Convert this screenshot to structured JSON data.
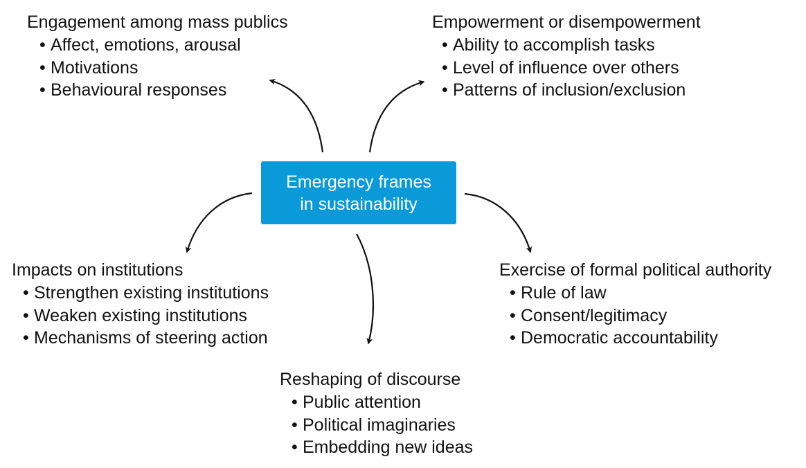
{
  "center": {
    "line1": "Emergency frames",
    "line2": "in sustainability",
    "color": "#0a9ad9"
  },
  "topics": {
    "engagement": {
      "title": "Engagement among mass publics",
      "items": [
        "Affect, emotions, arousal",
        "Motivations",
        "Behavioural responses"
      ]
    },
    "empowerment": {
      "title": "Empowerment or disempowerment",
      "items": [
        "Ability to accomplish tasks",
        "Level of influence over others",
        "Patterns of inclusion/exclusion"
      ]
    },
    "institutions": {
      "title": "Impacts on institutions",
      "items": [
        "Strengthen existing institutions",
        "Weaken existing institutions",
        "Mechanisms of steering action"
      ]
    },
    "authority": {
      "title": "Exercise of formal political authority",
      "items": [
        "Rule of law",
        "Consent/legitimacy",
        "Democratic accountability"
      ]
    },
    "discourse": {
      "title": "Reshaping of discourse",
      "items": [
        "Public attention",
        "Political imaginaries",
        "Embedding new ideas"
      ]
    }
  },
  "bullet_glyph": "•",
  "arrow_color": "#111111"
}
